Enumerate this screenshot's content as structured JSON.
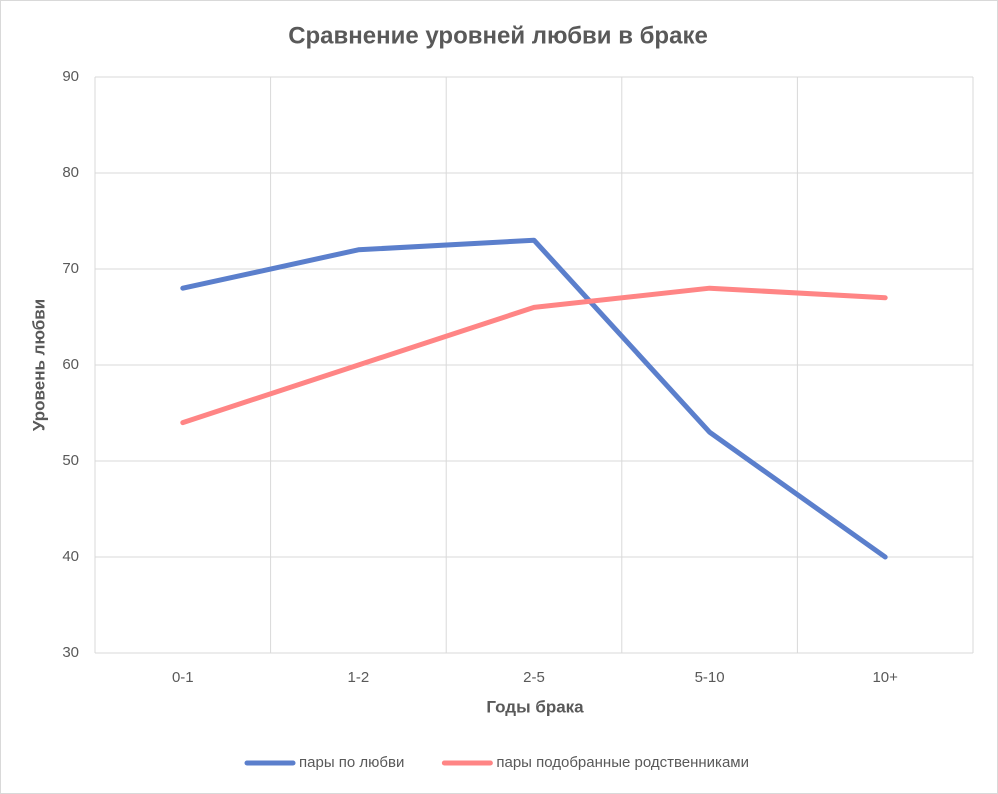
{
  "chart_data": {
    "type": "line",
    "title": "Сравнение уровней любви в браке",
    "x_label": "Годы брака",
    "y_label": "Уровень любви",
    "categories": [
      "0-1",
      "1-2",
      "2-5",
      "5-10",
      "10+"
    ],
    "series": [
      {
        "name": "пары по любви",
        "color": "#5b7fcc",
        "values": [
          68,
          72,
          73,
          53,
          40
        ]
      },
      {
        "name": "пары подобранные родственниками",
        "color": "#ff8585",
        "values": [
          54,
          60,
          66,
          68,
          67
        ]
      }
    ],
    "ylim": [
      30,
      90
    ],
    "yticks": [
      30,
      40,
      50,
      60,
      70,
      80,
      90
    ],
    "grid": true,
    "legend": "bottom"
  }
}
